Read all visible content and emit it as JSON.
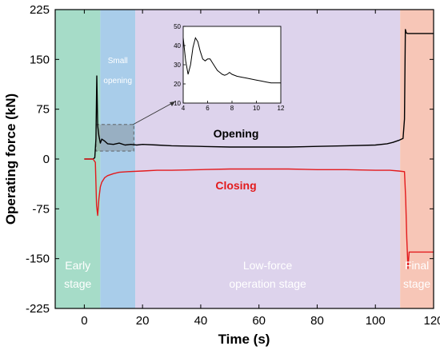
{
  "chart_data": {
    "type": "line",
    "title": "",
    "xlabel": "Time (s)",
    "ylabel": "Operating force (kN)",
    "xlim": [
      -10,
      120
    ],
    "ylim": [
      -225,
      225
    ],
    "xticks": [
      0,
      20,
      40,
      60,
      80,
      100,
      120
    ],
    "yticks": [
      -225,
      -150,
      -75,
      0,
      75,
      150,
      225
    ],
    "grid": false,
    "stages": [
      {
        "label_lines": [
          "Early",
          "stage"
        ],
        "x_range": [
          -10,
          5.5
        ],
        "color": "#a6dcc8"
      },
      {
        "label_lines": [
          "Small",
          "opening"
        ],
        "x_range": [
          5.5,
          17.5
        ],
        "color": "#a9cdea"
      },
      {
        "label_lines": [
          "Low-force",
          "operation stage"
        ],
        "x_range": [
          17.5,
          108.5
        ],
        "color": "#ddd3ec"
      },
      {
        "label_lines": [
          "Final",
          "stage"
        ],
        "x_range": [
          108.5,
          120
        ],
        "color": "#f7c6b7"
      }
    ],
    "series": [
      {
        "name": "Opening",
        "color": "#000000",
        "x": [
          0,
          3,
          3.6,
          4.0,
          4.3,
          4.6,
          5.0,
          5.5,
          6,
          7,
          8,
          10,
          12,
          14,
          16,
          18,
          20,
          25,
          30,
          40,
          50,
          60,
          70,
          80,
          90,
          100,
          104,
          106,
          108,
          109.5,
          110,
          110.3,
          110.6,
          111,
          120
        ],
        "y": [
          0,
          0,
          2,
          30,
          125,
          50,
          35,
          24,
          30,
          27,
          23,
          22,
          24,
          21,
          22,
          21,
          22,
          21,
          20,
          19,
          18,
          18,
          18,
          19,
          20,
          21,
          23,
          25,
          28,
          31,
          60,
          195,
          190,
          189,
          189
        ]
      },
      {
        "name": "Closing",
        "color": "#e31a1c",
        "x": [
          0,
          3,
          3.8,
          4.2,
          4.6,
          5.0,
          5.5,
          6,
          7,
          8,
          10,
          12,
          15,
          20,
          25,
          30,
          40,
          50,
          60,
          70,
          80,
          90,
          100,
          105,
          108,
          110,
          110.4,
          110.8,
          111.2,
          111.6,
          112,
          120
        ],
        "y": [
          0,
          0,
          -5,
          -70,
          -85,
          -60,
          -42,
          -35,
          -28,
          -25,
          -22,
          -20,
          -19,
          -18,
          -17,
          -17,
          -16,
          -15,
          -15,
          -15,
          -16,
          -16,
          -17,
          -17,
          -18,
          -19,
          -60,
          -120,
          -165,
          -140,
          -140,
          -140
        ]
      }
    ],
    "inset": {
      "source_x_range": [
        4,
        17
      ],
      "source_y_range": [
        12,
        52
      ],
      "xlim": [
        4,
        12
      ],
      "ylim": [
        10,
        50
      ],
      "xticks": [
        4,
        6,
        8,
        10,
        12
      ],
      "yticks": [
        10,
        20,
        30,
        40,
        50
      ],
      "x": [
        4.0,
        4.2,
        4.4,
        4.6,
        4.8,
        5.0,
        5.2,
        5.4,
        5.6,
        5.8,
        6.0,
        6.2,
        6.4,
        6.6,
        6.8,
        7.0,
        7.2,
        7.4,
        7.6,
        7.8,
        8.0,
        8.4,
        8.8,
        9.2,
        9.6,
        10.0,
        10.4,
        10.8,
        11.2,
        11.6,
        12.0
      ],
      "y": [
        44,
        32,
        25,
        30,
        39,
        44,
        42,
        37,
        33,
        32,
        33,
        33,
        31,
        29,
        27,
        26,
        25,
        24.5,
        25,
        26,
        25,
        24,
        23.5,
        23,
        22.5,
        22,
        21.5,
        21,
        20.5,
        20.5,
        20.5
      ]
    }
  }
}
